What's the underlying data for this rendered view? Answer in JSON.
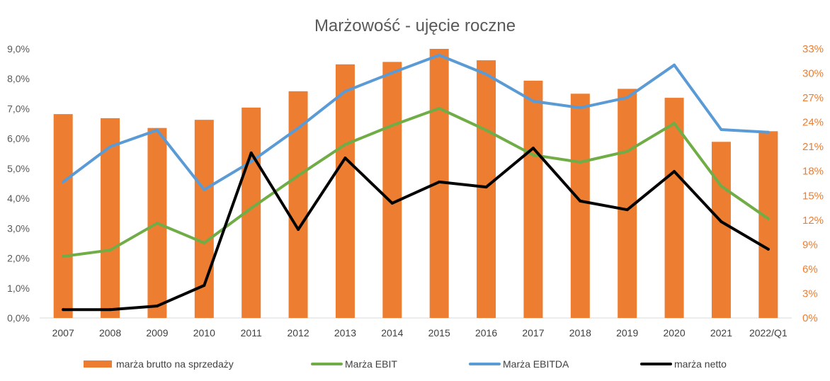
{
  "chart_data": {
    "type": "bar",
    "title": "Marżowość - ujęcie roczne",
    "categories": [
      "2007",
      "2008",
      "2009",
      "2010",
      "2011",
      "2012",
      "2013",
      "2014",
      "2015",
      "2016",
      "2017",
      "2018",
      "2019",
      "2020",
      "2021",
      "2022/Q1"
    ],
    "y_left": {
      "min": 0,
      "max": 9,
      "ticks": [
        0,
        1,
        2,
        3,
        4,
        5,
        6,
        7,
        8,
        9
      ],
      "tick_labels": [
        "0,0%",
        "1,0%",
        "2,0%",
        "3,0%",
        "4,0%",
        "5,0%",
        "6,0%",
        "7,0%",
        "8,0%",
        "9,0%"
      ],
      "color": "#595959"
    },
    "y_right": {
      "min": 0,
      "max": 33,
      "ticks": [
        0,
        3,
        6,
        9,
        12,
        15,
        18,
        21,
        24,
        27,
        30,
        33
      ],
      "tick_labels": [
        "0%",
        "3%",
        "6%",
        "9%",
        "12%",
        "15%",
        "18%",
        "21%",
        "24%",
        "27%",
        "30%",
        "33%"
      ],
      "color": "#ED7D31"
    },
    "grid": false,
    "legend": "bottom",
    "series": [
      {
        "name": "marża brutto na sprzedaży",
        "type": "bar",
        "axis": "right",
        "color": "#ED7D31",
        "values": [
          25.0,
          24.5,
          23.3,
          24.3,
          25.8,
          27.8,
          31.1,
          31.4,
          33.0,
          31.6,
          29.1,
          27.5,
          28.1,
          27.0,
          21.6,
          22.9
        ]
      },
      {
        "name": "Marża EBIT",
        "type": "line",
        "axis": "left",
        "color": "#70AD47",
        "values": [
          2.06,
          2.27,
          3.17,
          2.51,
          3.67,
          4.76,
          5.8,
          6.44,
          7.01,
          6.28,
          5.45,
          5.21,
          5.57,
          6.51,
          4.41,
          3.32
        ]
      },
      {
        "name": "Marża EBITDA",
        "type": "line",
        "axis": "left",
        "color": "#5B9BD5",
        "values": [
          4.55,
          5.73,
          6.28,
          4.29,
          5.23,
          6.35,
          7.58,
          8.2,
          8.79,
          8.15,
          7.25,
          7.03,
          7.37,
          8.46,
          6.3,
          6.21
        ]
      },
      {
        "name": "marża netto",
        "type": "line",
        "axis": "left",
        "color": "#000000",
        "values": [
          0.28,
          0.28,
          0.4,
          1.09,
          5.52,
          2.96,
          5.35,
          3.84,
          4.55,
          4.38,
          5.68,
          3.91,
          3.62,
          4.9,
          3.22,
          2.3
        ]
      }
    ]
  }
}
